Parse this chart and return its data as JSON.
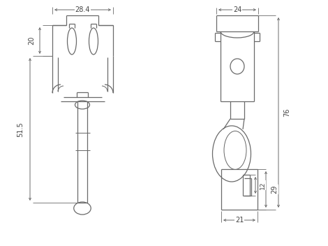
{
  "bg_color": "#ffffff",
  "line_color": "#6a6a6a",
  "figsize": [
    4.7,
    3.52
  ],
  "dpi": 100,
  "annotations": {
    "left_width": "28.4",
    "left_h20": "20",
    "left_h515": "51.5",
    "right_width": "24",
    "right_h76": "76",
    "right_h29": "29",
    "right_h12": "12",
    "right_w21": "21"
  }
}
